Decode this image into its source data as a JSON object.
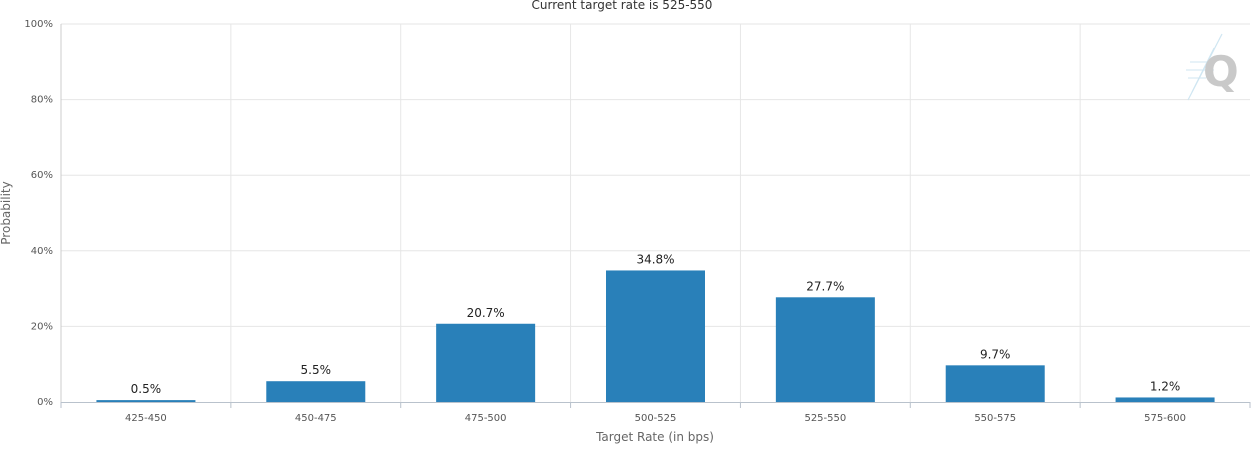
{
  "chart_data": {
    "type": "bar",
    "title": "Current target rate is 525-550",
    "xlabel": "Target Rate (in bps)",
    "ylabel": "Probability",
    "categories": [
      "425-450",
      "450-475",
      "475-500",
      "500-525",
      "525-550",
      "550-575",
      "575-600"
    ],
    "values": [
      0.5,
      5.5,
      20.7,
      34.8,
      27.7,
      9.7,
      1.2
    ],
    "data_labels": [
      "0.5%",
      "5.5%",
      "20.7%",
      "34.8%",
      "27.7%",
      "9.7%",
      "1.2%"
    ],
    "ylim": [
      0,
      100
    ],
    "y_ticks": [
      "0%",
      "20%",
      "40%",
      "60%",
      "80%",
      "100%"
    ],
    "y_tick_values": [
      0,
      20,
      40,
      60,
      80,
      100
    ],
    "grid": true,
    "bar_color": "#2980b9",
    "watermark_letter": "Q"
  }
}
